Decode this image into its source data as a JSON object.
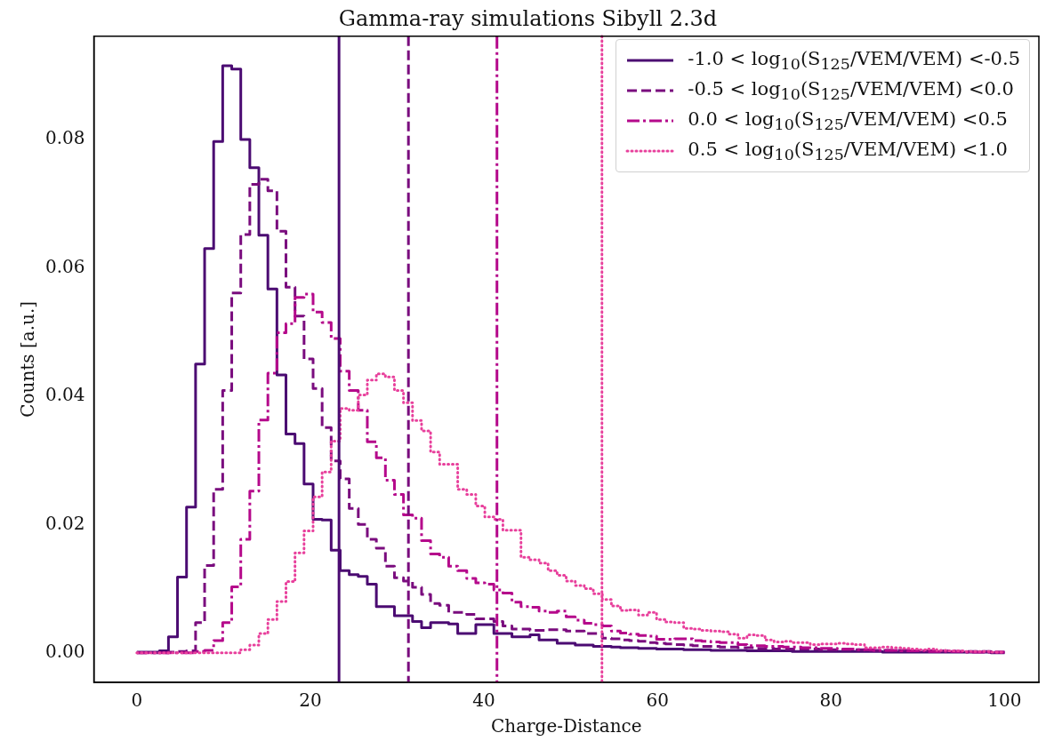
{
  "chart_data": {
    "type": "step",
    "title": "Gamma-ray simulations Sibyll 2.3d",
    "xlabel": "Charge-Distance",
    "ylabel": "Counts [a.u.]",
    "x": [
      0,
      1.042,
      2.083,
      3.125,
      4.167,
      5.208,
      6.25,
      7.292,
      8.333,
      9.375,
      10.417,
      11.458,
      12.5,
      13.542,
      14.583,
      15.625,
      16.667,
      17.708,
      18.75,
      19.792,
      20.833,
      21.875,
      22.917,
      23.958,
      25,
      26.042,
      27.083,
      28.125,
      29.167,
      30.208,
      31.25,
      32.292,
      33.333,
      34.375,
      35.417,
      36.458,
      37.5,
      38.542,
      39.583,
      40.625,
      41.667,
      42.708,
      43.75,
      44.792,
      45.833,
      46.875,
      47.917,
      48.958,
      50,
      51.042,
      52.083,
      53.125,
      54.167,
      55.208,
      56.25,
      57.292,
      58.333,
      59.375,
      60.417,
      61.458,
      62.5,
      63.542,
      64.583,
      65.625,
      66.667,
      67.708,
      68.75,
      69.792,
      70.833,
      71.875,
      72.917,
      73.958,
      75,
      76.042,
      77.083,
      78.125,
      79.167,
      80.208,
      81.25,
      82.292,
      83.333,
      84.375,
      85.417,
      86.458,
      87.5,
      88.542,
      89.583,
      90.625,
      91.667,
      92.708,
      93.75,
      94.792,
      95.833,
      96.875,
      97.917,
      98.958,
      100
    ],
    "series": [
      {
        "name": "-1.0 < log$_{10}$(S$_{125}$/VEM/VEM) <-0.5",
        "color": "#4b0b72",
        "line_style": "solid",
        "values": [
          0.0001,
          0.0001,
          0.0001,
          0.0003,
          0.0025,
          0.0118,
          0.0227,
          0.045,
          0.063,
          0.0797,
          0.0915,
          0.091,
          0.08,
          0.0756,
          0.0651,
          0.0567,
          0.0433,
          0.0341,
          0.0326,
          0.0263,
          0.0208,
          0.0207,
          0.016,
          0.0128,
          0.0122,
          0.0119,
          0.0107,
          0.0072,
          0.0072,
          0.0058,
          0.0058,
          0.0049,
          0.0039,
          0.0047,
          0.0047,
          0.0045,
          0.003,
          0.003,
          0.0044,
          0.0044,
          0.003,
          0.003,
          0.0025,
          0.0025,
          0.0028,
          0.002,
          0.002,
          0.0015,
          0.0015,
          0.0012,
          0.0012,
          0.001,
          0.001,
          0.0009,
          0.0008,
          0.0008,
          0.0007,
          0.0007,
          0.0006,
          0.0006,
          0.0006,
          0.0005,
          0.0005,
          0.0005,
          0.0004,
          0.0004,
          0.0004,
          0.0004,
          0.0003,
          0.0003,
          0.0003,
          0.0003,
          0.0003,
          0.0002,
          0.0002,
          0.0002,
          0.0002,
          0.0002,
          0.0002,
          0.0002,
          0.0002,
          0.0002,
          0.0002,
          0.0001,
          0.0001,
          0.0001,
          0.0001,
          0.0001,
          0.0001,
          0.0001,
          0.0001,
          0.0001,
          0.0001,
          0.0001,
          0.0001,
          0,
          0
        ]
      },
      {
        "name": "-0.5 < log$_{10}$(S$_{125}$/VEM/VEM) <0.0",
        "color": "#7a0c7e",
        "line_style": "dashed",
        "values": [
          0,
          0,
          0,
          0,
          0.0001,
          0.0002,
          0.0003,
          0.0047,
          0.0136,
          0.0255,
          0.0409,
          0.0561,
          0.0652,
          0.073,
          0.0738,
          0.072,
          0.0657,
          0.057,
          0.0525,
          0.0458,
          0.0412,
          0.0351,
          0.0299,
          0.0271,
          0.0225,
          0.02,
          0.0177,
          0.0163,
          0.0135,
          0.0117,
          0.0112,
          0.0102,
          0.0091,
          0.0077,
          0.0074,
          0.0063,
          0.0063,
          0.006,
          0.0053,
          0.0053,
          0.0049,
          0.0042,
          0.0037,
          0.0037,
          0.0035,
          0.0035,
          0.0036,
          0.0036,
          0.0034,
          0.0034,
          0.003,
          0.003,
          0.0023,
          0.0022,
          0.002,
          0.0019,
          0.0018,
          0.0016,
          0.0015,
          0.0014,
          0.0013,
          0.0012,
          0.0011,
          0.001,
          0.001,
          0.0009,
          0.0009,
          0.0008,
          0.0008,
          0.0007,
          0.0007,
          0.0006,
          0.0006,
          0.0006,
          0.0006,
          0.0006,
          0.0005,
          0.0005,
          0.0005,
          0.0005,
          0.0005,
          0.0004,
          0.0004,
          0.0004,
          0.0004,
          0.0004,
          0.0003,
          0.0003,
          0.0003,
          0.0003,
          0.0003,
          0.0002,
          0.0002,
          0.0002,
          0.0002,
          0.0001,
          0.0001
        ]
      },
      {
        "name": "0.0 < log$_{10}$(S$_{125}$/VEM/VEM) <0.5",
        "color": "#b5098b",
        "line_style": "dashdot",
        "values": [
          0,
          0,
          0,
          0,
          0,
          0,
          0,
          0.0002,
          0.0004,
          0.0019,
          0.0047,
          0.0103,
          0.0177,
          0.0252,
          0.0363,
          0.0436,
          0.0499,
          0.0513,
          0.0554,
          0.0559,
          0.0531,
          0.0515,
          0.049,
          0.0439,
          0.0409,
          0.0378,
          0.0329,
          0.0304,
          0.0269,
          0.0247,
          0.0215,
          0.021,
          0.0175,
          0.0154,
          0.0149,
          0.0135,
          0.0128,
          0.0116,
          0.0109,
          0.0107,
          0.0098,
          0.0093,
          0.0079,
          0.0072,
          0.0071,
          0.0065,
          0.0063,
          0.0065,
          0.0056,
          0.0051,
          0.0046,
          0.0044,
          0.0042,
          0.0034,
          0.0031,
          0.0029,
          0.0027,
          0.0026,
          0.0021,
          0.0021,
          0.0022,
          0.0022,
          0.0019,
          0.0018,
          0.0017,
          0.0016,
          0.0016,
          0.0013,
          0.0011,
          0.0011,
          0.001,
          0.001,
          0.0009,
          0.0009,
          0.0008,
          0.0008,
          0.0007,
          0.0007,
          0.0006,
          0.0006,
          0.0005,
          0.0005,
          0.0004,
          0.0004,
          0.0004,
          0.0003,
          0.0003,
          0.0003,
          0.0002,
          0.0002,
          0.0002,
          0.0002,
          0.0001,
          0.0001,
          0.0001,
          0.0001,
          0.0001
        ]
      },
      {
        "name": "0.5 < log$_{10}$(S$_{125}$/VEM/VEM) <1.0",
        "color": "#e8409c",
        "line_style": "dotted",
        "values": [
          0,
          0,
          0,
          0,
          0,
          0,
          0,
          0,
          0,
          0,
          0,
          0,
          0.0005,
          0.0012,
          0.003,
          0.0052,
          0.008,
          0.0111,
          0.0156,
          0.019,
          0.0243,
          0.0282,
          0.033,
          0.0381,
          0.0378,
          0.0402,
          0.0425,
          0.0435,
          0.043,
          0.0409,
          0.039,
          0.0362,
          0.0346,
          0.0313,
          0.0294,
          0.0294,
          0.0255,
          0.0247,
          0.0229,
          0.0212,
          0.0208,
          0.0191,
          0.0191,
          0.0149,
          0.0145,
          0.014,
          0.0128,
          0.0121,
          0.0112,
          0.0105,
          0.01,
          0.0092,
          0.0083,
          0.0073,
          0.0066,
          0.0067,
          0.0059,
          0.0063,
          0.0052,
          0.0048,
          0.0047,
          0.0038,
          0.0037,
          0.0035,
          0.0034,
          0.0033,
          0.0029,
          0.0023,
          0.0028,
          0.0027,
          0.002,
          0.0017,
          0.0018,
          0.0016,
          0.0016,
          0.0013,
          0.0014,
          0.0014,
          0.0015,
          0.0014,
          0.0013,
          0.0008,
          0.0008,
          0.0009,
          0.0008,
          0.0007,
          0.0006,
          0.0005,
          0.0006,
          0.0004,
          0.0003,
          0.0003,
          0.0002,
          0.0002,
          0.0002,
          0.0001,
          0.0001
        ]
      }
    ],
    "ref_lines": [
      {
        "axis": "x",
        "value": 23.3,
        "color": "#4b0b72",
        "line_style": "solid"
      },
      {
        "axis": "x",
        "value": 31.3,
        "color": "#7a0c7e",
        "line_style": "dashed"
      },
      {
        "axis": "x",
        "value": 41.5,
        "color": "#b5098b",
        "line_style": "dashdot"
      },
      {
        "axis": "x",
        "value": 53.6,
        "color": "#e8409c",
        "line_style": "dotted"
      }
    ],
    "xlim": [
      -4.95,
      103.95
    ],
    "xticks": [
      0,
      20,
      40,
      60,
      80,
      100
    ],
    "ylim": [
      -0.0046,
      0.0961
    ],
    "yticks": [
      {
        "value": 0,
        "label": "0.00"
      },
      {
        "value": 0.02,
        "label": "0.02"
      },
      {
        "value": 0.04,
        "label": "0.04"
      },
      {
        "value": 0.06,
        "label": "0.06"
      },
      {
        "value": 0.08,
        "label": "0.08"
      }
    ],
    "grid": false,
    "legend": "top right"
  }
}
